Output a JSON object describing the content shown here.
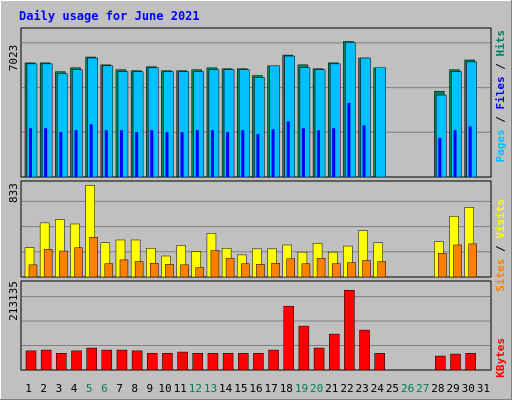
{
  "title": "Daily usage for June 2021",
  "colors": {
    "background": "#c0c0c0",
    "title": "#0000ff",
    "hits": "#00805c",
    "files": "#0000ff",
    "pages": "#00c0ff",
    "visits": "#ffff00",
    "sites": "#ff8000",
    "kbytes": "#ff0000",
    "weekend_day": "#00805c",
    "weekday": "#000000"
  },
  "chart_data": [
    {
      "type": "bar",
      "panel": "hits-files-pages",
      "y_max_label": "7023",
      "legend": [
        "Pages",
        "Files",
        "Hits"
      ],
      "ylim": [
        0,
        7023
      ],
      "categories": [
        "1",
        "2",
        "3",
        "4",
        "5",
        "6",
        "7",
        "8",
        "9",
        "10",
        "11",
        "12",
        "13",
        "14",
        "15",
        "16",
        "17",
        "18",
        "19",
        "20",
        "21",
        "22",
        "23",
        "24",
        "25",
        "26",
        "27",
        "28",
        "29",
        "30",
        "31"
      ],
      "series": [
        {
          "name": "Hits",
          "values": [
            5850,
            5850,
            5400,
            5600,
            6150,
            5750,
            5500,
            5450,
            5650,
            5450,
            5450,
            5500,
            5600,
            5550,
            5550,
            5200,
            5700,
            6250,
            5750,
            5550,
            5850,
            6950,
            6100,
            5600,
            0,
            0,
            0,
            4400,
            5500,
            6000,
            0
          ]
        },
        {
          "name": "Files",
          "values": [
            2500,
            2500,
            2300,
            2400,
            2700,
            2400,
            2400,
            2300,
            2400,
            2300,
            2300,
            2400,
            2400,
            2300,
            2400,
            2200,
            2450,
            2850,
            2500,
            2400,
            2500,
            3800,
            2650,
            0,
            0,
            0,
            0,
            2000,
            2400,
            2600,
            0
          ]
        },
        {
          "name": "Pages",
          "values": [
            5800,
            5800,
            5300,
            5500,
            6100,
            5700,
            5400,
            5400,
            5600,
            5400,
            5400,
            5400,
            5500,
            5500,
            5500,
            5100,
            5700,
            6200,
            5600,
            5500,
            5800,
            6900,
            6100,
            5600,
            0,
            0,
            0,
            4200,
            5400,
            5900,
            0
          ]
        }
      ]
    },
    {
      "type": "bar",
      "panel": "visits-sites",
      "y_max_label": "833",
      "legend": [
        "Sites",
        "Visits"
      ],
      "ylim": [
        0,
        833
      ],
      "categories": [
        "1",
        "2",
        "3",
        "4",
        "5",
        "6",
        "7",
        "8",
        "9",
        "10",
        "11",
        "12",
        "13",
        "14",
        "15",
        "16",
        "17",
        "18",
        "19",
        "20",
        "21",
        "22",
        "23",
        "24",
        "25",
        "26",
        "27",
        "28",
        "29",
        "30",
        "31"
      ],
      "series": [
        {
          "name": "Visits",
          "values": [
            265,
            490,
            520,
            480,
            830,
            310,
            335,
            335,
            260,
            190,
            285,
            230,
            395,
            260,
            200,
            255,
            255,
            290,
            225,
            305,
            225,
            280,
            420,
            310,
            0,
            0,
            0,
            320,
            550,
            630,
            0
          ]
        },
        {
          "name": "Sites",
          "values": [
            110,
            250,
            235,
            265,
            360,
            120,
            155,
            140,
            125,
            115,
            110,
            85,
            240,
            170,
            120,
            115,
            125,
            165,
            120,
            170,
            120,
            130,
            150,
            140,
            0,
            0,
            0,
            215,
            290,
            300,
            0
          ]
        }
      ]
    },
    {
      "type": "bar",
      "panel": "kbytes",
      "y_max_label": "213135",
      "legend": [
        "KBytes"
      ],
      "ylim": [
        0,
        213135
      ],
      "categories": [
        "1",
        "2",
        "3",
        "4",
        "5",
        "6",
        "7",
        "8",
        "9",
        "10",
        "11",
        "12",
        "13",
        "14",
        "15",
        "16",
        "17",
        "18",
        "19",
        "20",
        "21",
        "22",
        "23",
        "24",
        "25",
        "26",
        "27",
        "28",
        "29",
        "30",
        "31"
      ],
      "series": [
        {
          "name": "KBytes",
          "values": [
            48000,
            50000,
            42000,
            48000,
            55000,
            50000,
            50000,
            48000,
            42000,
            42000,
            45000,
            42000,
            42000,
            42000,
            42000,
            42000,
            50000,
            160000,
            110000,
            55000,
            90000,
            200000,
            100000,
            42000,
            0,
            0,
            0,
            35000,
            40000,
            42000,
            0
          ]
        }
      ]
    }
  ],
  "weekend_days": [
    5,
    6,
    12,
    13,
    19,
    20,
    26,
    27
  ]
}
